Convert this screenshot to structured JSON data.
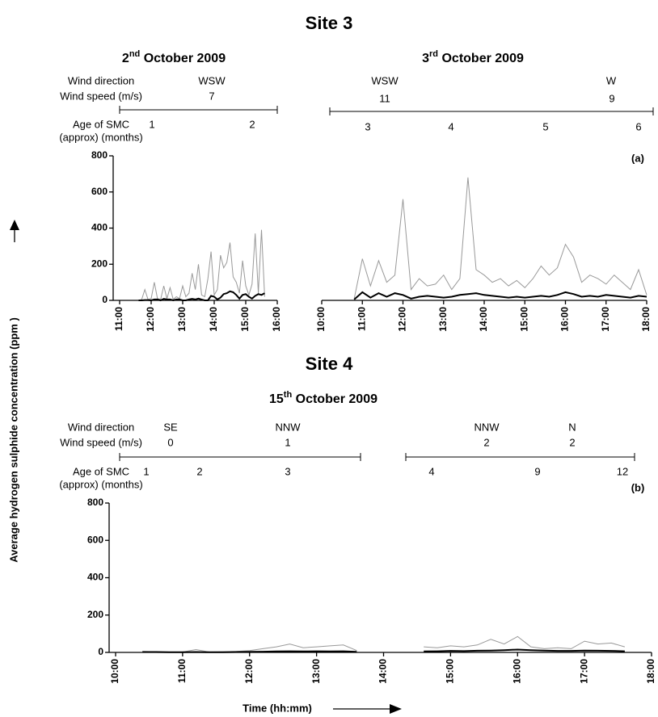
{
  "figure": {
    "y_label": "Average hydrogen sulphide  concentration (ppm )",
    "x_label": "Time (hh:mm)"
  },
  "chart_data": [
    {
      "type": "line",
      "site": "Site 3",
      "title": [
        "2",
        "nd",
        " October 2009"
      ],
      "row_labels": [
        "Wind direction",
        "Wind speed  (m/s)",
        "Age of SMC",
        "(approx) (months)"
      ],
      "wind": [
        {
          "direction": "WSW",
          "speed": 7
        }
      ],
      "ages": [
        1,
        2
      ],
      "x": [
        11.6,
        11.7,
        11.8,
        11.9,
        12.0,
        12.1,
        12.2,
        12.3,
        12.4,
        12.5,
        12.6,
        12.7,
        12.8,
        12.9,
        13.0,
        13.1,
        13.2,
        13.3,
        13.4,
        13.5,
        13.6,
        13.7,
        13.8,
        13.9,
        14.0,
        14.1,
        14.2,
        14.3,
        14.4,
        14.5,
        14.6,
        14.7,
        14.8,
        14.9,
        15.0,
        15.1,
        15.2,
        15.3,
        15.4,
        15.5,
        15.6
      ],
      "series": [
        {
          "color": "#999999",
          "values": [
            0,
            5,
            60,
            5,
            10,
            100,
            10,
            5,
            80,
            10,
            70,
            5,
            20,
            10,
            80,
            20,
            40,
            150,
            60,
            200,
            30,
            20,
            120,
            270,
            30,
            60,
            250,
            180,
            210,
            320,
            130,
            100,
            40,
            220,
            80,
            30,
            90,
            370,
            40,
            390,
            20
          ]
        },
        {
          "color": "#000000",
          "values": [
            0,
            0,
            2,
            2,
            0,
            5,
            5,
            0,
            8,
            5,
            5,
            0,
            5,
            5,
            0,
            0,
            5,
            8,
            5,
            10,
            5,
            0,
            0,
            25,
            20,
            5,
            15,
            35,
            40,
            50,
            45,
            30,
            10,
            30,
            35,
            20,
            10,
            25,
            35,
            30,
            40
          ]
        }
      ],
      "xlim": [
        11,
        16
      ],
      "xticks": [
        {
          "value": 11,
          "label": "11:00"
        },
        {
          "value": 12,
          "label": "12:00"
        },
        {
          "value": 13,
          "label": "13:00"
        },
        {
          "value": 14,
          "label": "14:00"
        },
        {
          "value": 15,
          "label": "15:00"
        },
        {
          "value": 16,
          "label": "16:00"
        }
      ],
      "ylim": [
        0,
        800
      ],
      "yticks": [
        0,
        200,
        400,
        600,
        800
      ]
    },
    {
      "type": "line",
      "title": [
        "3",
        "rd",
        " October 2009"
      ],
      "panel_label": "(a)",
      "wind": [
        {
          "direction": "WSW",
          "speed": 11
        },
        {
          "direction": "W",
          "speed": 9
        }
      ],
      "ages": [
        3,
        4,
        5,
        6
      ],
      "x": [
        10.8,
        11.0,
        11.2,
        11.4,
        11.6,
        11.8,
        12.0,
        12.2,
        12.4,
        12.6,
        12.8,
        13.0,
        13.2,
        13.4,
        13.6,
        13.8,
        14.0,
        14.2,
        14.4,
        14.6,
        14.8,
        15.0,
        15.2,
        15.4,
        15.6,
        15.8,
        16.0,
        16.2,
        16.4,
        16.6,
        16.8,
        17.0,
        17.2,
        17.4,
        17.6,
        17.8,
        18.0
      ],
      "series": [
        {
          "color": "#999999",
          "values": [
            10,
            230,
            80,
            220,
            100,
            140,
            560,
            60,
            120,
            80,
            90,
            140,
            60,
            120,
            680,
            170,
            140,
            100,
            120,
            80,
            110,
            70,
            120,
            190,
            140,
            180,
            310,
            240,
            100,
            140,
            120,
            90,
            140,
            100,
            60,
            170,
            30
          ]
        },
        {
          "color": "#000000",
          "values": [
            5,
            45,
            15,
            40,
            20,
            40,
            30,
            10,
            20,
            25,
            20,
            15,
            20,
            30,
            35,
            40,
            30,
            25,
            20,
            15,
            20,
            15,
            20,
            25,
            20,
            30,
            45,
            35,
            20,
            25,
            20,
            30,
            25,
            20,
            15,
            25,
            20
          ]
        }
      ],
      "xlim": [
        10,
        18
      ],
      "xticks": [
        {
          "value": 10,
          "label": "10:00"
        },
        {
          "value": 11,
          "label": "11:00"
        },
        {
          "value": 12,
          "label": "12:00"
        },
        {
          "value": 13,
          "label": "13:00"
        },
        {
          "value": 14,
          "label": "14:00"
        },
        {
          "value": 15,
          "label": "15:00"
        },
        {
          "value": 16,
          "label": "16:00"
        },
        {
          "value": 17,
          "label": "17:00"
        },
        {
          "value": 18,
          "label": "18:00"
        }
      ],
      "ylim": [
        0,
        800
      ],
      "yticks": [
        0,
        200,
        400,
        600,
        800
      ]
    },
    {
      "type": "line",
      "site": "Site 4",
      "title": [
        "15",
        "th",
        " October  2009"
      ],
      "panel_label": "(b)",
      "row_labels": [
        "Wind direction",
        "Wind speed (m/s)",
        "Age of SMC",
        "(approx) (months)"
      ],
      "wind": [
        {
          "direction": "SE",
          "speed": 0
        },
        {
          "direction": "NNW",
          "speed": 1
        },
        {
          "direction": "NNW",
          "speed": 2
        },
        {
          "direction": "N",
          "speed": 2
        }
      ],
      "ages": [
        1,
        2,
        3,
        4,
        9,
        12
      ],
      "x": [
        10.4,
        10.6,
        10.8,
        11.0,
        11.2,
        11.4,
        11.6,
        11.8,
        12.0,
        12.2,
        12.4,
        12.6,
        12.8,
        13.0,
        13.2,
        13.4,
        13.6,
        13.8,
        14.0,
        14.2,
        14.4,
        14.6,
        14.8,
        15.0,
        15.2,
        15.4,
        15.6,
        15.8,
        16.0,
        16.2,
        16.4,
        16.6,
        16.8,
        17.0,
        17.2,
        17.4,
        17.6
      ],
      "series": [
        {
          "color": "#999999",
          "values": [
            5,
            3,
            2,
            2,
            15,
            2,
            3,
            5,
            10,
            20,
            30,
            45,
            25,
            30,
            35,
            40,
            10,
            null,
            null,
            null,
            null,
            30,
            25,
            35,
            30,
            40,
            70,
            45,
            85,
            30,
            20,
            25,
            20,
            60,
            45,
            50,
            30
          ]
        },
        {
          "color": "#000000",
          "values": [
            2,
            2,
            1,
            1,
            2,
            1,
            1,
            2,
            3,
            4,
            5,
            6,
            5,
            6,
            5,
            6,
            3,
            null,
            null,
            null,
            null,
            5,
            6,
            8,
            7,
            9,
            10,
            12,
            15,
            12,
            10,
            8,
            8,
            10,
            9,
            8,
            6
          ]
        }
      ],
      "xlim": [
        10,
        18
      ],
      "xticks": [
        {
          "value": 10,
          "label": "10:00"
        },
        {
          "value": 11,
          "label": "11:00"
        },
        {
          "value": 12,
          "label": "12:00"
        },
        {
          "value": 13,
          "label": "13:00"
        },
        {
          "value": 14,
          "label": "14:00"
        },
        {
          "value": 15,
          "label": "15:00"
        },
        {
          "value": 16,
          "label": "16:00"
        },
        {
          "value": 17,
          "label": "17:00"
        },
        {
          "value": 18,
          "label": "18:00"
        }
      ],
      "ylim": [
        0,
        800
      ],
      "yticks": [
        0,
        200,
        400,
        600,
        800
      ]
    }
  ]
}
